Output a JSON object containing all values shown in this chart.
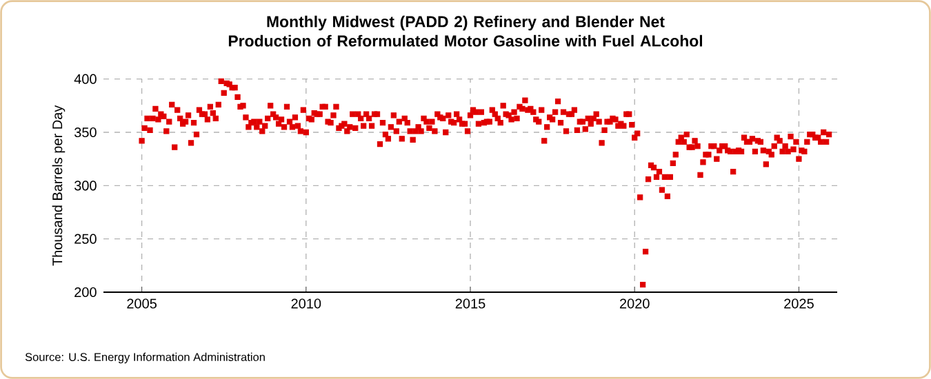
{
  "chart_data": {
    "type": "scatter",
    "title": "Monthly Midwest (PADD 2) Refinery and Blender Net Production of Reformulated Motor Gasoline with Fuel ALcohol",
    "ylabel": "Thousand Barrels per Day",
    "annotations": [
      "Source: U.S. Energy Information Administration"
    ],
    "color": "#e00000",
    "marker": "square",
    "grid": true,
    "xlim": [
      "2003-11",
      "2026-03"
    ],
    "ylim": [
      200,
      400
    ],
    "xticks": [
      "2005",
      "2010",
      "2015",
      "2020",
      "2025"
    ],
    "yticks": [
      200,
      250,
      300,
      350,
      400
    ],
    "x": [
      "2005-01",
      "2005-02",
      "2005-03",
      "2005-04",
      "2005-05",
      "2005-06",
      "2005-07",
      "2005-08",
      "2005-09",
      "2005-10",
      "2005-11",
      "2005-12",
      "2006-01",
      "2006-02",
      "2006-03",
      "2006-04",
      "2006-05",
      "2006-06",
      "2006-07",
      "2006-08",
      "2006-09",
      "2006-10",
      "2006-11",
      "2006-12",
      "2007-01",
      "2007-02",
      "2007-03",
      "2007-04",
      "2007-05",
      "2007-06",
      "2007-07",
      "2007-08",
      "2007-09",
      "2007-10",
      "2007-11",
      "2007-12",
      "2008-01",
      "2008-02",
      "2008-03",
      "2008-04",
      "2008-05",
      "2008-06",
      "2008-07",
      "2008-08",
      "2008-09",
      "2008-10",
      "2008-11",
      "2008-12",
      "2009-01",
      "2009-02",
      "2009-03",
      "2009-04",
      "2009-05",
      "2009-06",
      "2009-07",
      "2009-08",
      "2009-09",
      "2009-10",
      "2009-11",
      "2009-12",
      "2010-01",
      "2010-02",
      "2010-03",
      "2010-04",
      "2010-05",
      "2010-06",
      "2010-07",
      "2010-08",
      "2010-09",
      "2010-10",
      "2010-11",
      "2010-12",
      "2011-01",
      "2011-02",
      "2011-03",
      "2011-04",
      "2011-05",
      "2011-06",
      "2011-07",
      "2011-08",
      "2011-09",
      "2011-10",
      "2011-11",
      "2011-12",
      "2012-01",
      "2012-02",
      "2012-03",
      "2012-04",
      "2012-05",
      "2012-06",
      "2012-07",
      "2012-08",
      "2012-09",
      "2012-10",
      "2012-11",
      "2012-12",
      "2013-01",
      "2013-02",
      "2013-03",
      "2013-04",
      "2013-05",
      "2013-06",
      "2013-07",
      "2013-08",
      "2013-09",
      "2013-10",
      "2013-11",
      "2013-12",
      "2014-01",
      "2014-02",
      "2014-03",
      "2014-04",
      "2014-05",
      "2014-06",
      "2014-07",
      "2014-08",
      "2014-09",
      "2014-10",
      "2014-11",
      "2014-12",
      "2015-01",
      "2015-02",
      "2015-03",
      "2015-04",
      "2015-05",
      "2015-06",
      "2015-07",
      "2015-08",
      "2015-09",
      "2015-10",
      "2015-11",
      "2015-12",
      "2016-01",
      "2016-02",
      "2016-03",
      "2016-04",
      "2016-05",
      "2016-06",
      "2016-07",
      "2016-08",
      "2016-09",
      "2016-10",
      "2016-11",
      "2016-12",
      "2017-01",
      "2017-02",
      "2017-03",
      "2017-04",
      "2017-05",
      "2017-06",
      "2017-07",
      "2017-08",
      "2017-09",
      "2017-10",
      "2017-11",
      "2017-12",
      "2018-01",
      "2018-02",
      "2018-03",
      "2018-04",
      "2018-05",
      "2018-06",
      "2018-07",
      "2018-08",
      "2018-09",
      "2018-10",
      "2018-11",
      "2018-12",
      "2019-01",
      "2019-02",
      "2019-03",
      "2019-04",
      "2019-05",
      "2019-06",
      "2019-07",
      "2019-08",
      "2019-09",
      "2019-10",
      "2019-11",
      "2019-12",
      "2020-01",
      "2020-02",
      "2020-03",
      "2020-04",
      "2020-05",
      "2020-06",
      "2020-07",
      "2020-08",
      "2020-09",
      "2020-10",
      "2020-11",
      "2020-12",
      "2021-01",
      "2021-02",
      "2021-03",
      "2021-04",
      "2021-05",
      "2021-06",
      "2021-07",
      "2021-08",
      "2021-09",
      "2021-10",
      "2021-11",
      "2021-12",
      "2022-01",
      "2022-02",
      "2022-03",
      "2022-04",
      "2022-05",
      "2022-06",
      "2022-07",
      "2022-08",
      "2022-09",
      "2022-10",
      "2022-11",
      "2022-12",
      "2023-01",
      "2023-02",
      "2023-03",
      "2023-04",
      "2023-05",
      "2023-06",
      "2023-07",
      "2023-08",
      "2023-09",
      "2023-10",
      "2023-11",
      "2023-12",
      "2024-01",
      "2024-02",
      "2024-03",
      "2024-04",
      "2024-05",
      "2024-06",
      "2024-07",
      "2024-08",
      "2024-09",
      "2024-10",
      "2024-11",
      "2024-12",
      "2025-01",
      "2025-02",
      "2025-03",
      "2025-04",
      "2025-05",
      "2025-06",
      "2025-07",
      "2025-08",
      "2025-09",
      "2025-10",
      "2025-11",
      "2025-12"
    ],
    "values": [
      342,
      354,
      363,
      352,
      363,
      372,
      362,
      367,
      365,
      351,
      360,
      376,
      336,
      371,
      363,
      358,
      360,
      366,
      340,
      359,
      348,
      371,
      367,
      367,
      362,
      374,
      368,
      363,
      376,
      398,
      387,
      396,
      395,
      392,
      392,
      383,
      374,
      375,
      364,
      355,
      359,
      360,
      355,
      360,
      351,
      356,
      363,
      375,
      367,
      364,
      358,
      362,
      355,
      374,
      360,
      355,
      364,
      356,
      351,
      371,
      350,
      363,
      362,
      368,
      367,
      367,
      374,
      374,
      360,
      359,
      366,
      374,
      354,
      356,
      358,
      351,
      355,
      367,
      354,
      367,
      363,
      356,
      367,
      363,
      356,
      367,
      367,
      339,
      359,
      348,
      344,
      355,
      366,
      351,
      360,
      344,
      363,
      359,
      351,
      343,
      351,
      355,
      351,
      363,
      360,
      354,
      360,
      351,
      367,
      364,
      363,
      350,
      366,
      360,
      359,
      367,
      362,
      358,
      358,
      351,
      366,
      371,
      369,
      358,
      369,
      359,
      360,
      360,
      371,
      367,
      363,
      359,
      375,
      367,
      366,
      362,
      369,
      363,
      374,
      372,
      380,
      371,
      372,
      369,
      362,
      360,
      371,
      342,
      355,
      364,
      362,
      369,
      379,
      359,
      369,
      351,
      367,
      367,
      371,
      352,
      360,
      360,
      353,
      363,
      358,
      363,
      367,
      360,
      340,
      352,
      360,
      360,
      363,
      362,
      356,
      358,
      356,
      367,
      367,
      357,
      345,
      349,
      289,
      207,
      238,
      306,
      319,
      317,
      308,
      313,
      296,
      308,
      290,
      308,
      321,
      329,
      341,
      345,
      341,
      348,
      336,
      336,
      342,
      337,
      310,
      322,
      329,
      329,
      337,
      337,
      325,
      333,
      337,
      337,
      333,
      332,
      313,
      332,
      333,
      332,
      345,
      341,
      341,
      344,
      332,
      342,
      341,
      333,
      320,
      332,
      329,
      337,
      345,
      342,
      332,
      337,
      332,
      346,
      334,
      341,
      325,
      333,
      332,
      341,
      348,
      348,
      345,
      345,
      341,
      350,
      341,
      348
    ]
  }
}
